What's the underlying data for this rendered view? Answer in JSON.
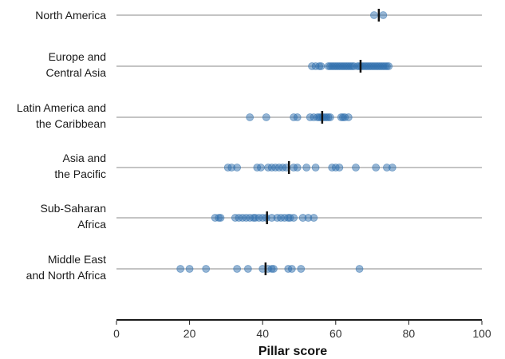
{
  "chart_data": {
    "type": "scatter",
    "xlabel": "Pillar score",
    "xlim": [
      0,
      100
    ],
    "xticks": [
      0,
      20,
      40,
      60,
      80,
      100
    ],
    "grid": false,
    "point_color": "#2f6fad",
    "median_color": "#111111",
    "categories": [
      {
        "label_lines": [
          "North America"
        ],
        "points": [
          70.5,
          73
        ],
        "median": 71.8
      },
      {
        "label_lines": [
          "Europe and",
          "Central Asia"
        ],
        "points": [
          53.5,
          54.5,
          55.5,
          56,
          58,
          58.5,
          59,
          59.5,
          60,
          60.5,
          61,
          61.5,
          62,
          62.5,
          63,
          63.5,
          64,
          64.5,
          65,
          66,
          66.5,
          67,
          67.5,
          68,
          68.5,
          69,
          69.5,
          70,
          70.5,
          71,
          71.5,
          72,
          72.5,
          73,
          73.5,
          74,
          74.5
        ],
        "median": 66.8
      },
      {
        "label_lines": [
          "Latin America and",
          "the Caribbean"
        ],
        "points": [
          36.5,
          41,
          48.5,
          49.5,
          53,
          54,
          55,
          55.5,
          56,
          56.5,
          57,
          57.5,
          58,
          58.5,
          61.5,
          62,
          62.5,
          63.5
        ],
        "median": 56.3
      },
      {
        "label_lines": [
          "Asia and",
          "the Pacific"
        ],
        "points": [
          30.5,
          31.5,
          33,
          38.5,
          39.5,
          41.5,
          42.5,
          43.5,
          44.5,
          45.5,
          46.5,
          48.5,
          49.5,
          52,
          54.5,
          59,
          60,
          61,
          65.5,
          71,
          74,
          75.5
        ],
        "median": 47.2
      },
      {
        "label_lines": [
          "Sub-Saharan",
          "Africa"
        ],
        "points": [
          27,
          28,
          28.5,
          32.5,
          33.5,
          34.5,
          35.5,
          36.5,
          37.5,
          38,
          39,
          40,
          41,
          42.5,
          44,
          45,
          46,
          47,
          47.5,
          48.5,
          51,
          52.5,
          54
        ],
        "median": 41.2
      },
      {
        "label_lines": [
          "Middle East",
          "and North Africa"
        ],
        "points": [
          17.5,
          20,
          24.5,
          33,
          36,
          40,
          41.5,
          42.5,
          43,
          47,
          48,
          50.5,
          66.5
        ],
        "median": 40.8
      }
    ]
  }
}
